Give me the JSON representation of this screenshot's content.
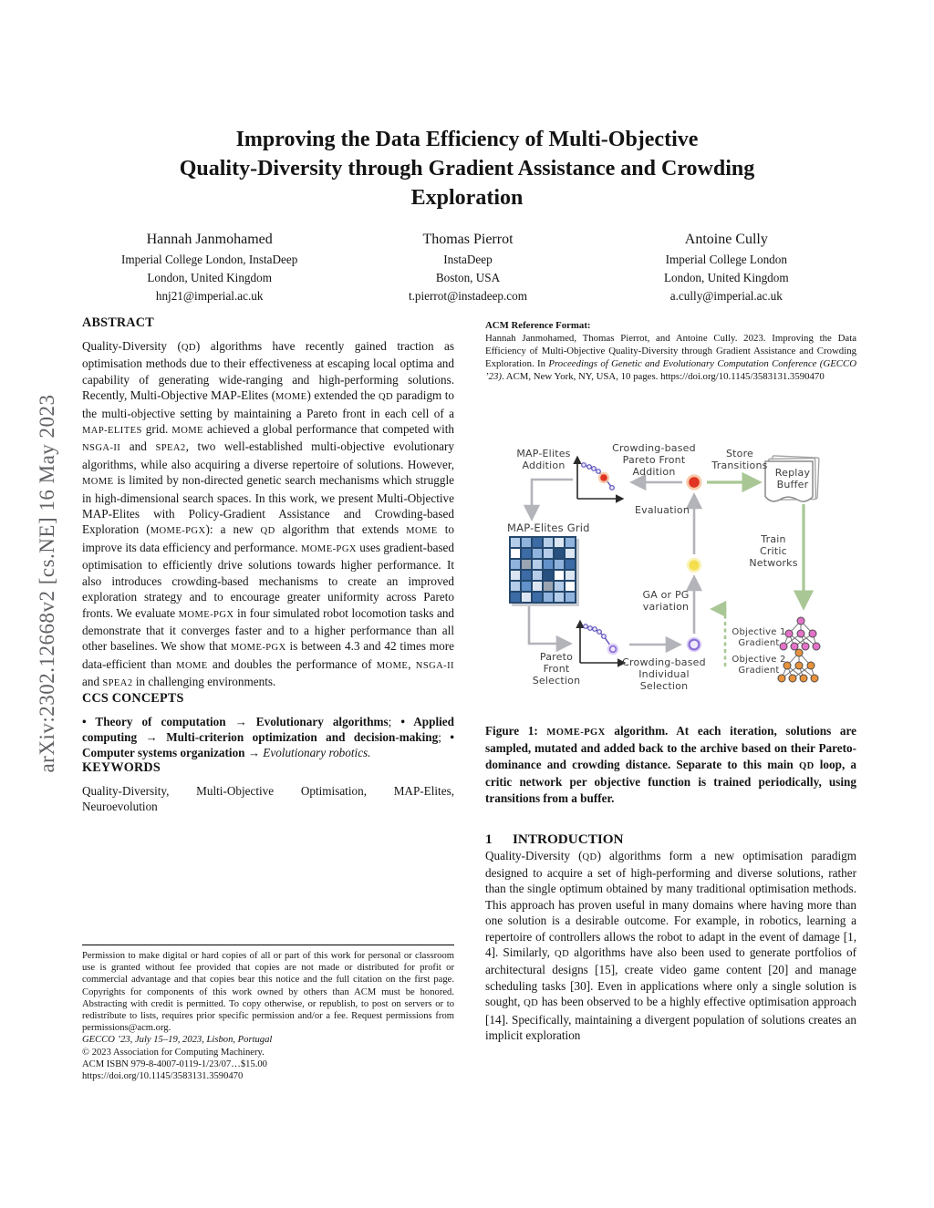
{
  "theme": {
    "text_dark": "#141414",
    "watermark_gray": "#606065",
    "fig_text": "#3d3d3d",
    "arrow_gray": "#b3b3ba",
    "arrow_green": "#a9c795",
    "axis_black": "#2a2a2a",
    "pareto_purple": "#5b50b8",
    "dot_red": "#e03321",
    "dot_red_halo": "#f6c3a0",
    "dot_yellow": "#f3df4e",
    "dot_yellow_halo": "#faf3bc",
    "dot_purple_stroke": "#8a6fd8",
    "dot_purple_fill": "#efe9fb",
    "dot_purple_halo": "#ded3f6",
    "net_pink": "#e471c9",
    "net_orange": "#e8923c",
    "grid_border": "#24486e"
  },
  "watermark": "arXiv:2302.12668v2  [cs.NE]  16 May 2023",
  "title": {
    "lines": [
      "Improving the Data Efficiency of Multi-Objective",
      "Quality-Diversity through Gradient Assistance and Crowding",
      "Exploration"
    ]
  },
  "authors": [
    {
      "name": "Hannah Janmohamed",
      "affil1": "Imperial College London, InstaDeep",
      "affil2": "London, United Kingdom",
      "email": "hnj21@imperial.ac.uk"
    },
    {
      "name": "Thomas Pierrot",
      "affil1": "InstaDeep",
      "affil2": "Boston, USA",
      "email": "t.pierrot@instadeep.com"
    },
    {
      "name": "Antoine Cully",
      "affil1": "Imperial College London",
      "affil2": "London, United Kingdom",
      "email": "a.cully@imperial.ac.uk"
    }
  ],
  "left": {
    "abstract_heading": "ABSTRACT",
    "abstract": [
      "Quality-Diversity (",
      {
        "t": "QD",
        "s": "sc"
      },
      ") algorithms have recently gained traction as optimisation methods due to their effectiveness at escaping local optima and capability of generating wide-ranging and high-performing solutions. Recently, Multi-Objective MAP-Elites (",
      {
        "t": "MOME",
        "s": "sc"
      },
      ") extended the ",
      {
        "t": "QD",
        "s": "sc"
      },
      " paradigm to the multi-objective setting by maintaining a Pareto front in each cell of a ",
      {
        "t": "MAP-ELITES",
        "s": "sc"
      },
      " grid. ",
      {
        "t": "MOME",
        "s": "sc"
      },
      " achieved a global performance that competed with ",
      {
        "t": "NSGA-II",
        "s": "sc"
      },
      " and ",
      {
        "t": "SPEA2",
        "s": "sc"
      },
      ", two well-established multi-objective evolutionary algorithms, while also acquiring a diverse repertoire of solutions. However, ",
      {
        "t": "MOME",
        "s": "sc"
      },
      " is limited by non-directed genetic search mechanisms which struggle in high-dimensional search spaces. In this work, we present Multi-Objective MAP-Elites with Policy-Gradient Assistance and Crowding-based Exploration (",
      {
        "t": "MOME-PGX",
        "s": "sc"
      },
      "): a new ",
      {
        "t": "QD",
        "s": "sc"
      },
      " algorithm that extends ",
      {
        "t": "MOME",
        "s": "sc"
      },
      " to improve its data efficiency and performance. ",
      {
        "t": "MOME-PGX",
        "s": "sc"
      },
      " uses gradient-based optimisation to efficiently drive solutions towards higher performance. It also introduces crowding-based mechanisms to create an improved exploration strategy and to encourage greater uniformity across Pareto fronts. We evaluate ",
      {
        "t": "MOME-PGX",
        "s": "sc"
      },
      " in four simulated robot locomotion tasks and demonstrate that it converges faster and to a higher performance than all other baselines. We show that ",
      {
        "t": "MOME-PGX",
        "s": "sc"
      },
      " is between 4.3 and 42 times more data-efficient than ",
      {
        "t": "MOME",
        "s": "sc"
      },
      " and doubles the performance of ",
      {
        "t": "MOME",
        "s": "sc"
      },
      ", ",
      {
        "t": "NSGA-II",
        "s": "sc"
      },
      " and ",
      {
        "t": "SPEA2",
        "s": "sc"
      },
      " in challenging environments."
    ],
    "ccs_heading": "CCS CONCEPTS",
    "ccs": [
      {
        "t": "• Theory of computation → Evolutionary algorithms",
        "s": "b"
      },
      "; ",
      {
        "t": "• Applied computing → Multi-criterion optimization and decision-making",
        "s": "b"
      },
      "; ",
      {
        "t": "• Computer systems organization",
        "s": "b"
      },
      " → ",
      {
        "t": "Evolutionary robotics.",
        "s": "i"
      }
    ],
    "keywords_heading": "KEYWORDS",
    "keywords": "Quality-Diversity, Multi-Objective Optimisation, MAP-Elites, Neuroevolution",
    "footnote": {
      "permission": "Permission to make digital or hard copies of all or part of this work for personal or classroom use is granted without fee provided that copies are not made or distributed for profit or commercial advantage and that copies bear this notice and the full citation on the first page. Copyrights for components of this work owned by others than ACM must be honored. Abstracting with credit is permitted. To copy otherwise, or republish, to post on servers or to redistribute to lists, requires prior specific permission and/or a fee. Request permissions from permissions@acm.org.",
      "conference": "GECCO ’23, July 15–19, 2023, Lisbon, Portugal",
      "copyright": "© 2023 Association for Computing Machinery.",
      "isbn": "ACM ISBN 979-8-4007-0119-1/23/07…$15.00",
      "doi": "https://doi.org/10.1145/3583131.3590470"
    }
  },
  "right": {
    "acm_ref_heading": "ACM Reference Format:",
    "acm_ref": [
      "Hannah Janmohamed, Thomas Pierrot, and Antoine Cully. 2023. Improving the Data Efficiency of Multi-Objective Quality-Diversity through Gradient Assistance and Crowding Exploration. In ",
      {
        "t": "Proceedings of Genetic and Evolutionary Computation Conference (GECCO ’23)",
        "s": "i"
      },
      ". ACM, New York, NY, USA, 10 pages. https://doi.org/10.1145/3583131.3590470"
    ],
    "caption": [
      "Figure 1: ",
      {
        "t": "MOME-PGX",
        "s": "sc"
      },
      " algorithm. At each iteration, solutions are sampled, mutated and added back to the archive based on their Pareto-dominance and crowding distance. Separate to this main ",
      {
        "t": "QD",
        "s": "sc"
      },
      " loop, a critic network per objective function is trained periodically, using transitions from a buffer."
    ],
    "intro_heading_num": "1",
    "intro_heading": "INTRODUCTION",
    "intro": [
      "Quality-Diversity (",
      {
        "t": "QD",
        "s": "sc"
      },
      ") algorithms form a new optimisation paradigm designed to acquire a set of high-performing and diverse solutions, rather than the single optimum obtained by many traditional optimisation methods. This approach has proven useful in many domains where having more than one solution is a desirable outcome. For example, in robotics, learning a repertoire of controllers allows the robot to adapt in the event of damage [1, 4]. Similarly, ",
      {
        "t": "QD",
        "s": "sc"
      },
      " algorithms have also been used to generate portfolios of architectural designs [15], create video game content [20] and manage scheduling tasks [30]. Even in applications where only a single solution is sought, ",
      {
        "t": "QD",
        "s": "sc"
      },
      " has been observed to be a highly effective optimisation approach [14]. Specifically, maintaining a divergent population of solutions creates an implicit exploration"
    ]
  },
  "figure": {
    "labels": {
      "map_elites_addition": "MAP-Elites\nAddition",
      "crowding_pf_addition": "Crowding-based\nPareto Front\nAddition",
      "store_transitions": "Store\nTransitions",
      "replay_buffer": "Replay\nBuffer",
      "evaluation": "Evaluation",
      "map_elites_grid": "MAP-Elites Grid",
      "train_critic": "Train\nCritic\nNetworks",
      "ga_pg": "GA or PG\nvariation",
      "pareto_selection": "Pareto\nFront\nSelection",
      "crowding_individual": "Crowding-based\nIndividual\nSelection",
      "objective1": "Objective 1\nGradient",
      "objective2": "Objective 2\nGradient"
    },
    "grid": {
      "palette": [
        "#ffffff",
        "#dce6f2",
        "#b5cde8",
        "#8fb3dc",
        "#6292c9",
        "#3c6ba5",
        "#27507f",
        "#9aa5b1"
      ],
      "cells": [
        [
          2,
          3,
          5,
          2,
          1,
          3
        ],
        [
          0,
          5,
          3,
          2,
          6,
          1
        ],
        [
          3,
          7,
          2,
          4,
          3,
          5
        ],
        [
          1,
          5,
          2,
          6,
          0,
          1
        ],
        [
          2,
          4,
          1,
          7,
          2,
          0
        ],
        [
          5,
          1,
          5,
          3,
          2,
          3
        ]
      ]
    }
  }
}
